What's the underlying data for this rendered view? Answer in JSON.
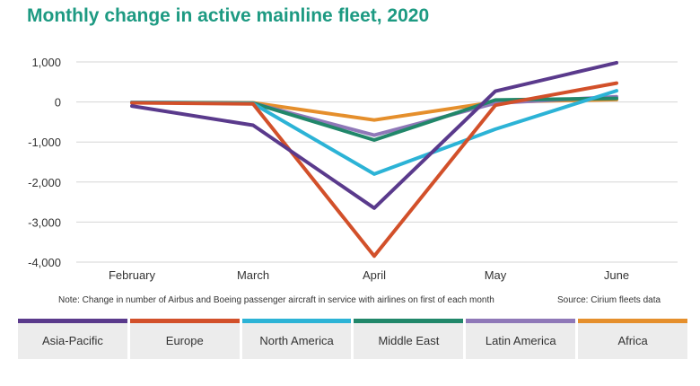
{
  "title": "Monthly change in active mainline fleet, 2020",
  "note": "Note: Change in number of Airbus and Boeing passenger aircraft in service with airlines on first of each month",
  "source": "Source: Cirium fleets data",
  "chart_data": {
    "type": "line",
    "title": "Monthly change in active mainline fleet, 2020",
    "categories": [
      "February",
      "March",
      "April",
      "May",
      "June"
    ],
    "ylim": [
      -4000,
      1000
    ],
    "yticks": [
      1000,
      0,
      -1000,
      -2000,
      -3000,
      -4000
    ],
    "ytick_labels": [
      "1,000",
      "0",
      "-1,000",
      "-2,000",
      "-3,000",
      "-4,000"
    ],
    "grid": "horizontal",
    "legend_position": "bottom",
    "series": [
      {
        "name": "Asia-Pacific",
        "color": "#5a3a8c",
        "values": [
          -100,
          -580,
          -2650,
          270,
          980
        ]
      },
      {
        "name": "Europe",
        "color": "#d2502a",
        "values": [
          -20,
          -50,
          -3850,
          -80,
          470
        ]
      },
      {
        "name": "North America",
        "color": "#2cb3d6",
        "values": [
          -10,
          -40,
          -1800,
          -680,
          280
        ]
      },
      {
        "name": "Middle East",
        "color": "#21876a",
        "values": [
          -10,
          -30,
          -950,
          50,
          90
        ]
      },
      {
        "name": "Latin America",
        "color": "#8f78b8",
        "values": [
          -10,
          -30,
          -830,
          -30,
          130
        ]
      },
      {
        "name": "Africa",
        "color": "#e58f2c",
        "values": [
          -10,
          -20,
          -450,
          0,
          60
        ]
      }
    ]
  }
}
